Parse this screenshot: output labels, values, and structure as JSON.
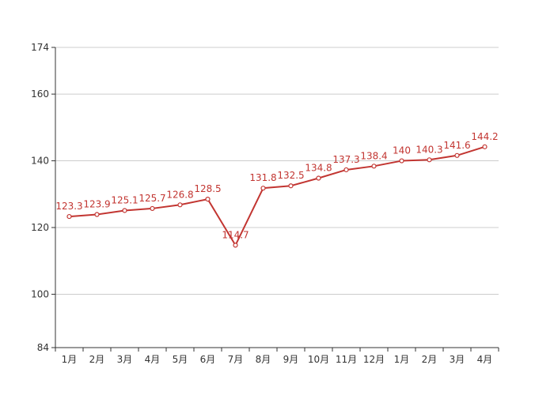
{
  "chart_data": {
    "type": "line",
    "categories": [
      "1月",
      "2月",
      "3月",
      "4月",
      "5月",
      "6月",
      "7月",
      "8月",
      "9月",
      "10月",
      "11月",
      "12月",
      "1月",
      "2月",
      "3月",
      "4月"
    ],
    "series": [
      {
        "values": [
          123.3,
          123.9,
          125.1,
          125.7,
          126.8,
          128.5,
          114.7,
          131.8,
          132.5,
          134.8,
          137.3,
          138.4,
          140,
          140.3,
          141.6,
          144.2
        ]
      }
    ],
    "y_ticks": [
      "84",
      "100",
      "120",
      "140",
      "160",
      "174"
    ],
    "ylim": [
      84,
      174
    ],
    "grid": true,
    "colors": {
      "line": "#c23531",
      "axis": "#333333",
      "grid": "#cccccc"
    }
  }
}
